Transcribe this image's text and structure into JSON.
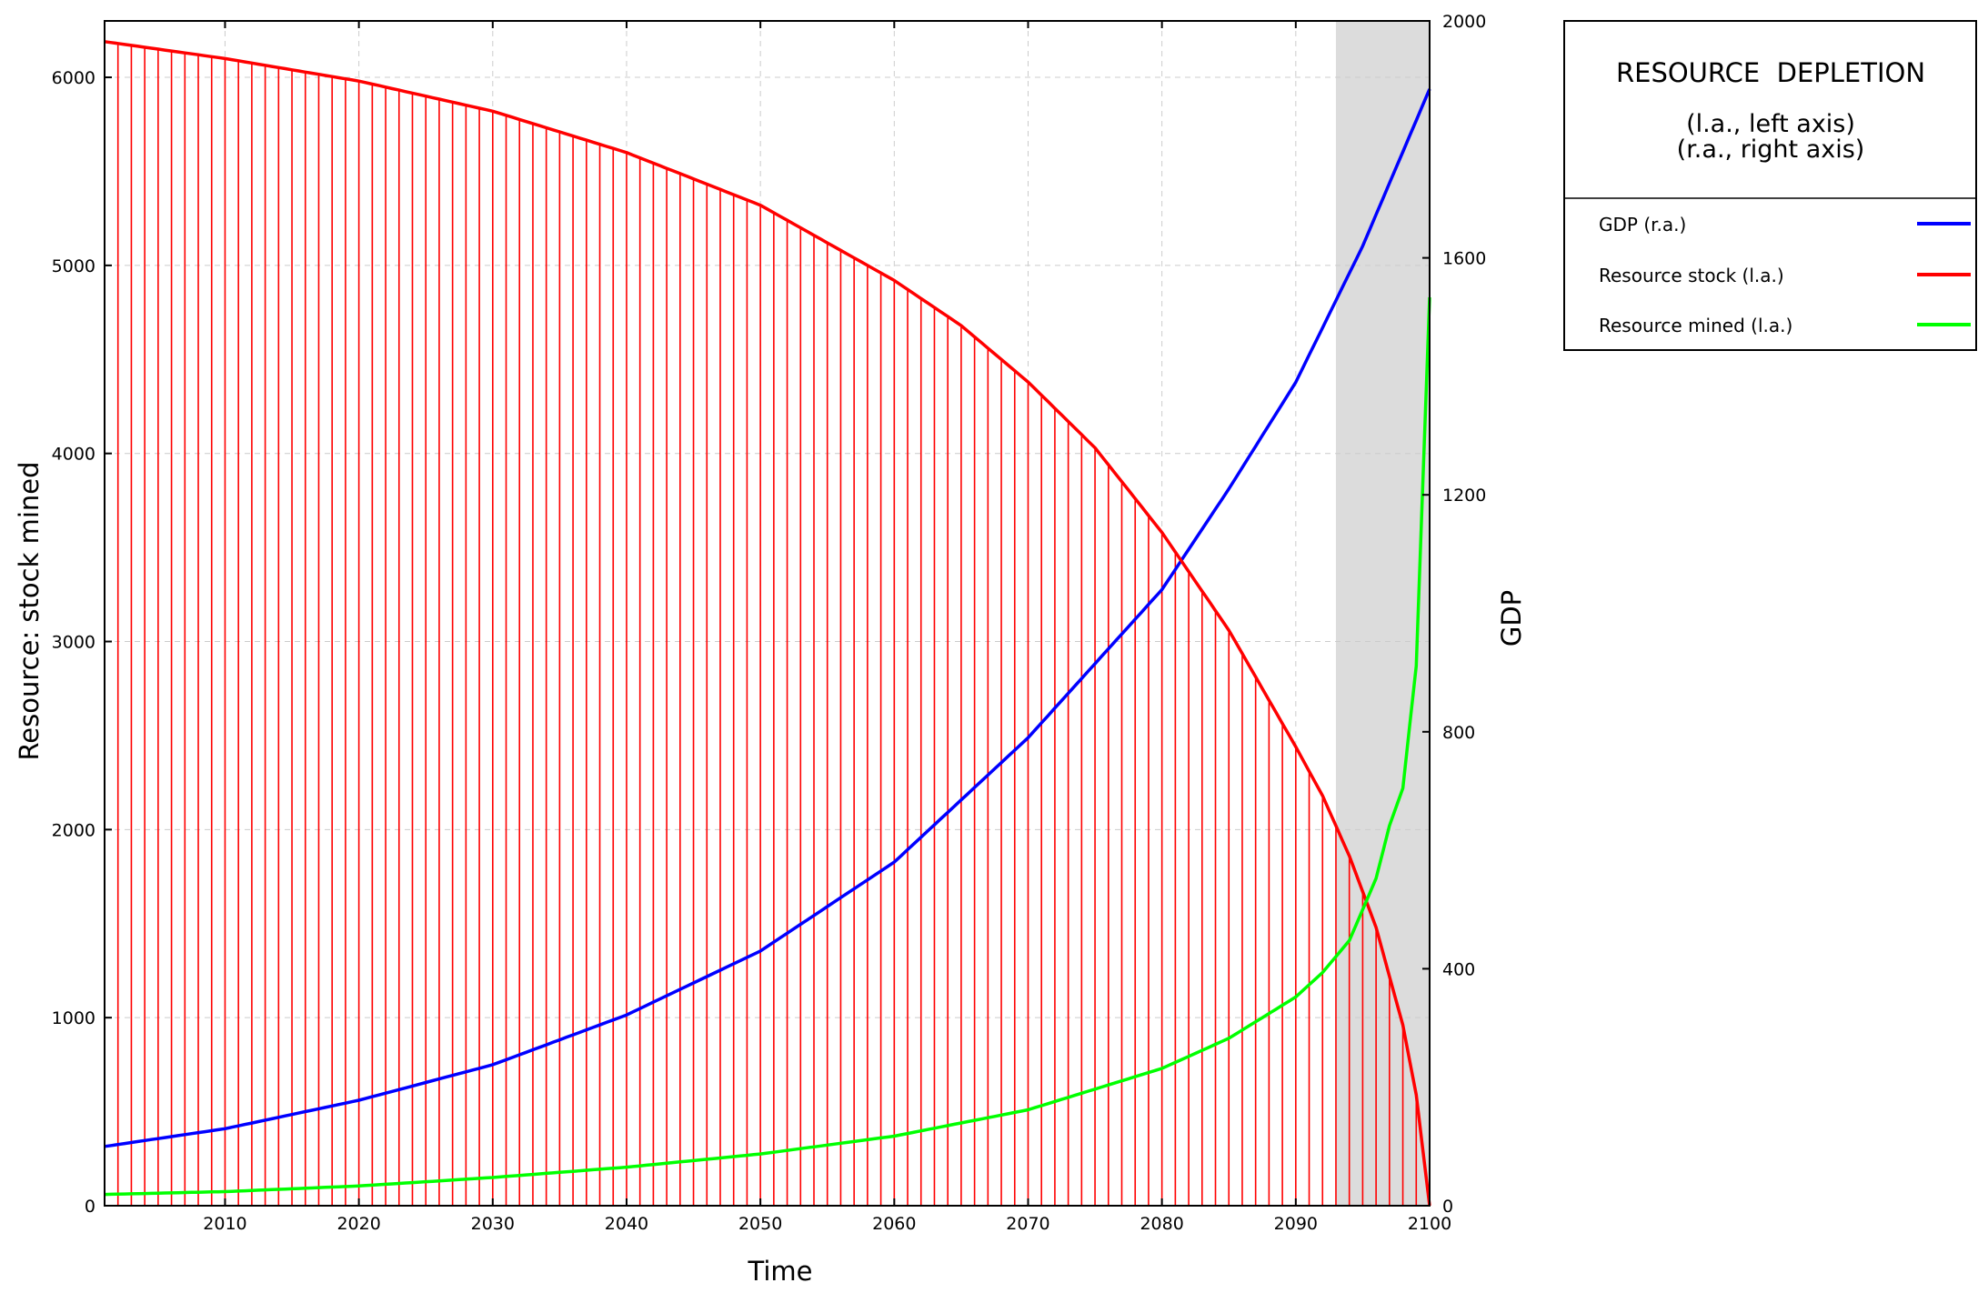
{
  "chart_data": {
    "type": "line",
    "title": "RESOURCE  DEPLETION",
    "subtitle_lines": [
      "(l.a., left axis)",
      "(r.a., right axis)"
    ],
    "xlabel": "Time",
    "ylabel_left": "Resource: stock  mined",
    "ylabel_right": "GDP",
    "xlim": [
      2001,
      2100
    ],
    "ylim_left": [
      0,
      6300
    ],
    "ylim_right": [
      0,
      2000
    ],
    "x_ticks": [
      2010,
      2020,
      2030,
      2040,
      2050,
      2060,
      2070,
      2080,
      2090,
      2100
    ],
    "y_ticks_left": [
      0,
      1000,
      2000,
      3000,
      4000,
      5000,
      6000
    ],
    "y_ticks_right": [
      0,
      400,
      800,
      1200,
      1600,
      2000
    ],
    "shaded_region_x": [
      2093,
      2100
    ],
    "grid": true,
    "legend_position": "right",
    "series": [
      {
        "name": "GDP (r.a.)",
        "axis": "right",
        "color": "#0000ff",
        "x": [
          2001,
          2010,
          2020,
          2030,
          2040,
          2050,
          2060,
          2070,
          2080,
          2085,
          2090,
          2095,
          2100
        ],
        "y": [
          100,
          130,
          178,
          238,
          322,
          430,
          580,
          790,
          1040,
          1210,
          1390,
          1620,
          1885
        ]
      },
      {
        "name": "Resource stock (l.a.)",
        "axis": "left",
        "color": "#ff0000",
        "style": "line with vertical drop lines",
        "x": [
          2001,
          2010,
          2020,
          2030,
          2040,
          2050,
          2060,
          2065,
          2070,
          2075,
          2080,
          2085,
          2090,
          2092,
          2094,
          2096,
          2098,
          2099,
          2100
        ],
        "y": [
          6190,
          6100,
          5980,
          5820,
          5600,
          5320,
          4920,
          4680,
          4380,
          4030,
          3580,
          3060,
          2440,
          2180,
          1860,
          1480,
          960,
          590,
          0
        ]
      },
      {
        "name": "Resource mined (l.a.)",
        "axis": "left",
        "color": "#00ff00",
        "x": [
          2001,
          2010,
          2020,
          2030,
          2040,
          2050,
          2060,
          2070,
          2080,
          2085,
          2090,
          2092,
          2094,
          2096,
          2097,
          2098,
          2099,
          2100
        ],
        "y": [
          60,
          75,
          105,
          150,
          205,
          275,
          370,
          510,
          730,
          890,
          1110,
          1240,
          1410,
          1740,
          2020,
          2220,
          2870,
          4830
        ]
      }
    ]
  }
}
